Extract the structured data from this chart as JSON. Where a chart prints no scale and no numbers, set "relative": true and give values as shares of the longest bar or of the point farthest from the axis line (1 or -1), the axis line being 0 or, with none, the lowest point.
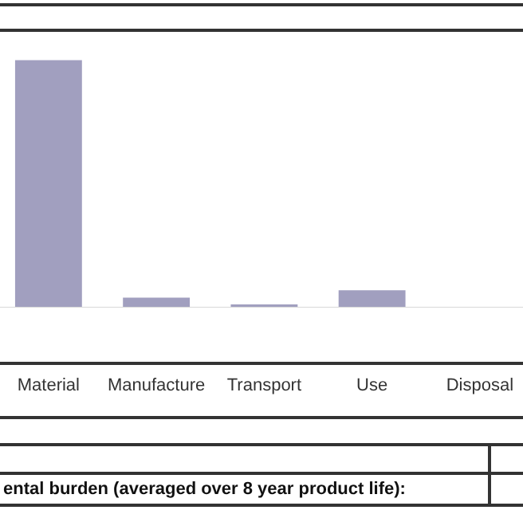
{
  "chart_data": {
    "type": "bar",
    "relative": true,
    "categories": [
      "Material",
      "Manufacture",
      "Transport",
      "Use",
      "Disposal"
    ],
    "values": [
      1,
      0.04,
      0.01,
      0.07,
      0
    ],
    "color": "#a19fbf",
    "annotations": [
      "ental burden (averaged over 8 year product life):"
    ]
  }
}
